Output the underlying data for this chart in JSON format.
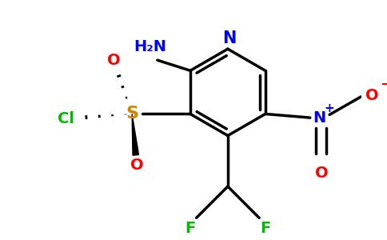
{
  "background_color": "#ffffff",
  "bond_color": "#000000",
  "bond_width": 2.5,
  "figsize": [
    4.84,
    3.0
  ],
  "dpi": 100,
  "colors": {
    "N": "#0000ff",
    "O": "#ff0000",
    "S": "#cc8800",
    "Cl": "#00bb00",
    "F": "#00bb00",
    "C": "#000000"
  }
}
